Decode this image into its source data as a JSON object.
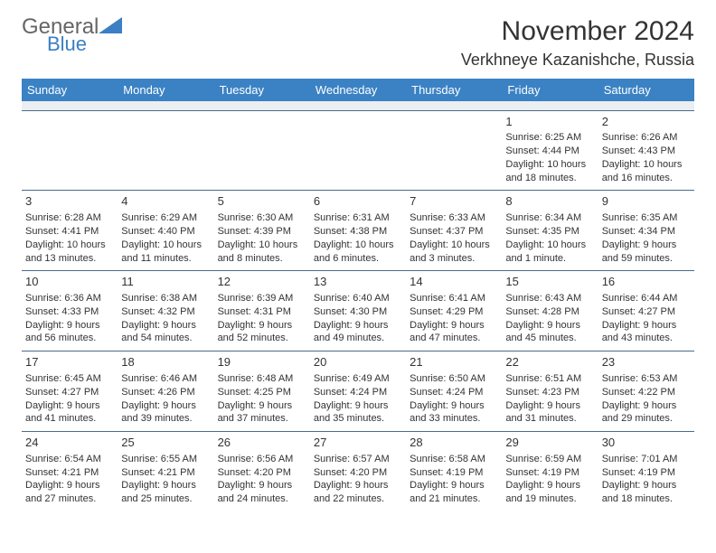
{
  "brand": {
    "part1": "General",
    "part2": "Blue"
  },
  "title": "November 2024",
  "location": "Verkhneye Kazanishche, Russia",
  "colors": {
    "header_bg": "#3b82c4",
    "header_text": "#ffffff",
    "row_border": "#4a6a8a",
    "blank_row_bg": "#eceff1",
    "body_text": "#333333",
    "logo_blue": "#3b7fc4",
    "page_bg": "#ffffff"
  },
  "typography": {
    "title_fontsize": 30,
    "location_fontsize": 18,
    "dayhead_fontsize": 13,
    "cell_fontsize": 11,
    "daynum_fontsize": 13
  },
  "day_headers": [
    "Sunday",
    "Monday",
    "Tuesday",
    "Wednesday",
    "Thursday",
    "Friday",
    "Saturday"
  ],
  "weeks": [
    [
      null,
      null,
      null,
      null,
      null,
      {
        "n": "1",
        "sr": "6:25 AM",
        "ss": "4:44 PM",
        "dl": "10 hours and 18 minutes."
      },
      {
        "n": "2",
        "sr": "6:26 AM",
        "ss": "4:43 PM",
        "dl": "10 hours and 16 minutes."
      }
    ],
    [
      {
        "n": "3",
        "sr": "6:28 AM",
        "ss": "4:41 PM",
        "dl": "10 hours and 13 minutes."
      },
      {
        "n": "4",
        "sr": "6:29 AM",
        "ss": "4:40 PM",
        "dl": "10 hours and 11 minutes."
      },
      {
        "n": "5",
        "sr": "6:30 AM",
        "ss": "4:39 PM",
        "dl": "10 hours and 8 minutes."
      },
      {
        "n": "6",
        "sr": "6:31 AM",
        "ss": "4:38 PM",
        "dl": "10 hours and 6 minutes."
      },
      {
        "n": "7",
        "sr": "6:33 AM",
        "ss": "4:37 PM",
        "dl": "10 hours and 3 minutes."
      },
      {
        "n": "8",
        "sr": "6:34 AM",
        "ss": "4:35 PM",
        "dl": "10 hours and 1 minute."
      },
      {
        "n": "9",
        "sr": "6:35 AM",
        "ss": "4:34 PM",
        "dl": "9 hours and 59 minutes."
      }
    ],
    [
      {
        "n": "10",
        "sr": "6:36 AM",
        "ss": "4:33 PM",
        "dl": "9 hours and 56 minutes."
      },
      {
        "n": "11",
        "sr": "6:38 AM",
        "ss": "4:32 PM",
        "dl": "9 hours and 54 minutes."
      },
      {
        "n": "12",
        "sr": "6:39 AM",
        "ss": "4:31 PM",
        "dl": "9 hours and 52 minutes."
      },
      {
        "n": "13",
        "sr": "6:40 AM",
        "ss": "4:30 PM",
        "dl": "9 hours and 49 minutes."
      },
      {
        "n": "14",
        "sr": "6:41 AM",
        "ss": "4:29 PM",
        "dl": "9 hours and 47 minutes."
      },
      {
        "n": "15",
        "sr": "6:43 AM",
        "ss": "4:28 PM",
        "dl": "9 hours and 45 minutes."
      },
      {
        "n": "16",
        "sr": "6:44 AM",
        "ss": "4:27 PM",
        "dl": "9 hours and 43 minutes."
      }
    ],
    [
      {
        "n": "17",
        "sr": "6:45 AM",
        "ss": "4:27 PM",
        "dl": "9 hours and 41 minutes."
      },
      {
        "n": "18",
        "sr": "6:46 AM",
        "ss": "4:26 PM",
        "dl": "9 hours and 39 minutes."
      },
      {
        "n": "19",
        "sr": "6:48 AM",
        "ss": "4:25 PM",
        "dl": "9 hours and 37 minutes."
      },
      {
        "n": "20",
        "sr": "6:49 AM",
        "ss": "4:24 PM",
        "dl": "9 hours and 35 minutes."
      },
      {
        "n": "21",
        "sr": "6:50 AM",
        "ss": "4:24 PM",
        "dl": "9 hours and 33 minutes."
      },
      {
        "n": "22",
        "sr": "6:51 AM",
        "ss": "4:23 PM",
        "dl": "9 hours and 31 minutes."
      },
      {
        "n": "23",
        "sr": "6:53 AM",
        "ss": "4:22 PM",
        "dl": "9 hours and 29 minutes."
      }
    ],
    [
      {
        "n": "24",
        "sr": "6:54 AM",
        "ss": "4:21 PM",
        "dl": "9 hours and 27 minutes."
      },
      {
        "n": "25",
        "sr": "6:55 AM",
        "ss": "4:21 PM",
        "dl": "9 hours and 25 minutes."
      },
      {
        "n": "26",
        "sr": "6:56 AM",
        "ss": "4:20 PM",
        "dl": "9 hours and 24 minutes."
      },
      {
        "n": "27",
        "sr": "6:57 AM",
        "ss": "4:20 PM",
        "dl": "9 hours and 22 minutes."
      },
      {
        "n": "28",
        "sr": "6:58 AM",
        "ss": "4:19 PM",
        "dl": "9 hours and 21 minutes."
      },
      {
        "n": "29",
        "sr": "6:59 AM",
        "ss": "4:19 PM",
        "dl": "9 hours and 19 minutes."
      },
      {
        "n": "30",
        "sr": "7:01 AM",
        "ss": "4:19 PM",
        "dl": "9 hours and 18 minutes."
      }
    ]
  ],
  "labels": {
    "sunrise": "Sunrise: ",
    "sunset": "Sunset: ",
    "daylight": "Daylight: "
  }
}
